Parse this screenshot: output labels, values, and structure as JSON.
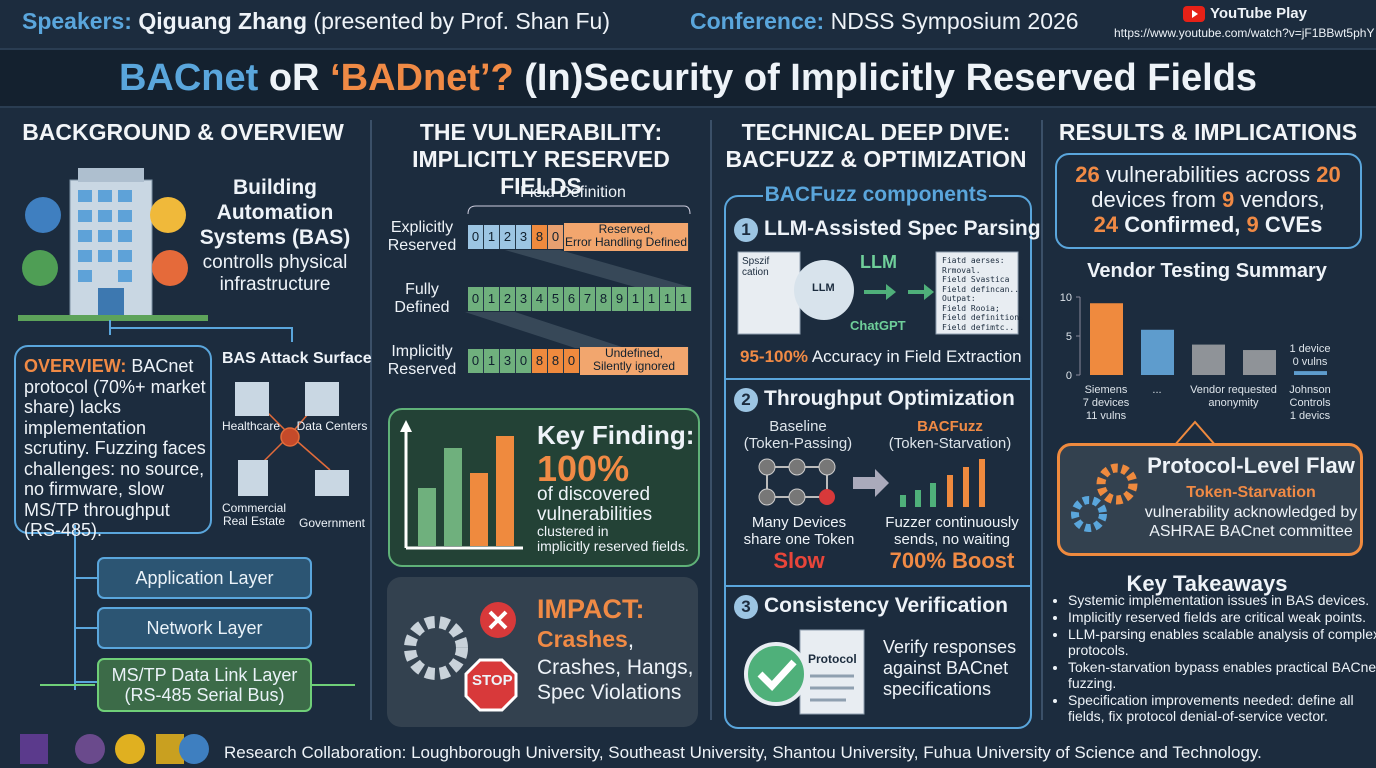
{
  "header": {
    "speakers_label": "Speakers:",
    "speakers": "Qiguang Zhang",
    "presenter": "(presented by Prof. Shan Fu)",
    "conference_label": "Conference:",
    "conference": "NDSS Symposium 2026",
    "youtube": "YouTube Play",
    "url": "https://www.youtube.com/watch?v=jF1BBwt5phY"
  },
  "title": {
    "part1": "BACnet",
    "part2": " oR ",
    "part3": "‘BADnet’?",
    "part4": " (In)Security of Implicitly Reserved Fields"
  },
  "background": {
    "heading": "BACKGROUND & OVERVIEW",
    "bas_title": "Building\nAutomation\nSystems (BAS)",
    "bas_sub": "controlls physical\ninfrastructure",
    "overview_label": "OVERVIEW:",
    "overview": " BACnet protocol (70%+ market share) lacks implementation scrutiny. Fuzzing faces challenges: no source, no firmware, slow MS/TP throughput (RS-485).",
    "attack_title": "BAS Attack Surface",
    "targets": [
      "Healthcare",
      "Data Centers",
      "Commercial\nReal Estate",
      "Government"
    ],
    "layers": [
      "Application Layer",
      "Network Layer",
      "MS/TP Data Link Layer\n(RS-485 Serial Bus)"
    ]
  },
  "vulnerability": {
    "heading": "THE VULNERABILITY:\nIMPLICITLY RESERVED FIELDS",
    "field_definition": "Field Definition",
    "rows": [
      {
        "label": "Explicitly\nReserved",
        "cells": [
          "0",
          "1",
          "2",
          "3",
          "8",
          "0"
        ],
        "note": "Reserved,\nError Handling Defined"
      },
      {
        "label": "Fully\nDefined",
        "cells": [
          "0",
          "1",
          "2",
          "3",
          "4",
          "5",
          "6",
          "7",
          "8",
          "9",
          "1",
          "1",
          "1",
          "1"
        ]
      },
      {
        "label": "Implicitly\nReserved",
        "cells": [
          "0",
          "1",
          "3",
          "0",
          "8",
          "8",
          "0"
        ],
        "note": "Undefined,\nSilently ignored"
      }
    ],
    "key_finding": "Key Finding:",
    "percent": "100%",
    "finding_text": "of discovered\nvulnerabilities",
    "finding_small": "clustered in\nimplicitly reserved fields.",
    "impact": "IMPACT:",
    "impact_crash": "Crashes",
    "impact_comma": ",",
    "impact_text": "Crashes, Hangs,\nSpec Violations",
    "stop": "STOP"
  },
  "deep_dive": {
    "heading": "TECHNICAL DEEP DIVE:\nBACFUZZ & OPTIMIZATION",
    "components": "BACFuzz components",
    "steps": [
      {
        "n": "1",
        "title": "LLM-Assisted Spec Parsing"
      },
      {
        "n": "2",
        "title": "Throughput Optimization"
      },
      {
        "n": "3",
        "title": "Consistency Verification"
      }
    ],
    "spec_doc": "Spszif\ncation",
    "llm_head": "LLM",
    "llm": "LLM",
    "chatgpt": "ChatGPT",
    "output_doc": "Fiatd aerses:\nRrmoval.\nField Svastica\nField defincan..\nOutpat:\nField Rooia;\nField definitions\nField defimtc..",
    "accuracy_num": "95-100%",
    "accuracy": " Accuracy in Field Extraction",
    "baseline": "Baseline\n(Token-Passing)",
    "bacfuzz": "BACFuzz",
    "bacfuzz_sub": "(Token-Starvation)",
    "baseline_desc": "Many Devices\nshare one Token",
    "slow": "Slow",
    "fuzzer_desc": "Fuzzer continuously\nsends, no waiting",
    "boost": "700% Boost",
    "protocol": "Protocol",
    "verify": "Verify responses\nagainst BACnet\nspecifications"
  },
  "results": {
    "heading": "RESULTS & IMPLICATIONS",
    "s1": "26",
    "s2": " vulnerabilities across ",
    "s3": "20",
    "s4": "devices from ",
    "s5": "9",
    "s6": " vendors,",
    "s7": "24",
    "s8": " Confirmed, ",
    "s9": "9",
    "s10": " CVEs",
    "flaw_title": "Protocol-Level Flaw",
    "flaw_sub": "Token-Starvation",
    "flaw_text": "vulnerability acknowledged by\nASHRAE BACnet committee",
    "takeaways_title": "Key Takeaways",
    "takeaways": [
      "Systemic implementation issues in BAS devices.",
      "Implicitly reserved fields are critical weak points.",
      "LLM-parsing enables scalable analysis of complex protocols.",
      "Token-starvation bypass enables practical BACnet fuzzing.",
      "Specification improvements needed: define all fields, fix protocol denial-of-service vector."
    ]
  },
  "chart_data": {
    "type": "bar",
    "title": "Vendor Testing Summary",
    "categories": [
      "Siemens\n7 devices\n11 vulns",
      "...",
      "Vendor requested\nanonymity",
      null,
      "Johnson\nControls\n1 devics"
    ],
    "values": [
      9.2,
      5.8,
      3.9,
      3.2,
      0.5
    ],
    "colors": [
      "#ef8a3e",
      "#5e9ccd",
      "#8f9398",
      "#8f9398",
      "#5e9ccd"
    ],
    "ylim": [
      0,
      10
    ],
    "yticks": [
      0,
      5,
      10
    ],
    "annotation": "1 device\n0 vulns"
  },
  "footer": {
    "text": "Research Collaboration: Loughborough University, Southeast University, Shantou University, Fuhua University of Science and Technology."
  }
}
